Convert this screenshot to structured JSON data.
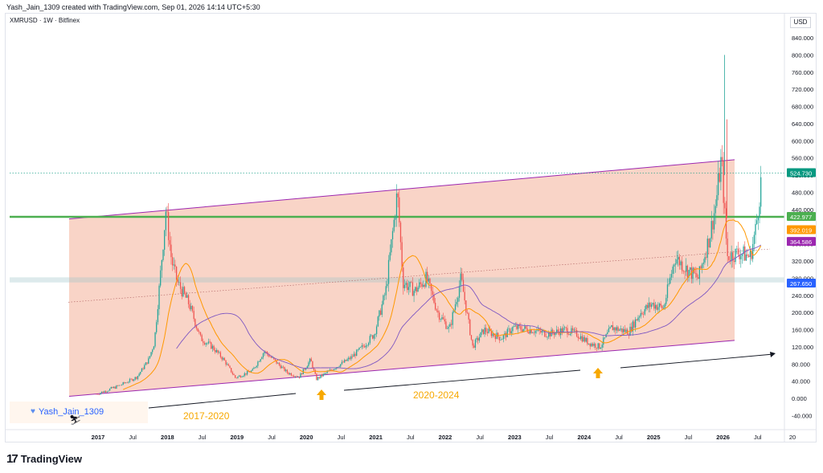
{
  "header": {
    "attribution": "Yash_Jain_1309 created with TradingView.com, Sep 01, 2026 14:14 UTC+5:30",
    "symbol": "XMRUSD · 1W · Bitfinex",
    "currency": "USD"
  },
  "brand": {
    "logo_icon": "tradingview-logo-icon",
    "name": "TradingView"
  },
  "watermark": {
    "text": "Yash_Jain_1309",
    "heart_icon": "heart-icon"
  },
  "colors": {
    "up": "#26a69a",
    "down": "#ef5350",
    "channel_fill": "#f7c9b9",
    "channel_line": "#9c27b0",
    "support": "#4caf50",
    "ma_fast": "#ff9800",
    "ma_slow": "#7e57c2",
    "label_orange": "#f7a800",
    "price_teal": "#089981",
    "price_purple": "#9c27b0",
    "price_blue": "#2962ff"
  },
  "chart_data": {
    "type": "candlestick",
    "title": "",
    "xlabel": "",
    "ylabel": "",
    "ylim": [
      -40,
      880
    ],
    "x_ticks": [
      "2017",
      "Jul",
      "2018",
      "Jul",
      "2019",
      "Jul",
      "2020",
      "Jul",
      "2021",
      "Jul",
      "2022",
      "Jul",
      "2023",
      "Jul",
      "2024",
      "Jul",
      "2025",
      "Jul",
      "2026",
      "Jul",
      "20"
    ],
    "y_ticks": [
      "840.000",
      "800.000",
      "760.000",
      "720.000",
      "680.000",
      "640.000",
      "600.000",
      "560.000",
      "520.000",
      "480.000",
      "440.000",
      "400.000",
      "360.000",
      "320.000",
      "280.000",
      "240.000",
      "200.000",
      "160.000",
      "120.000",
      "80.000",
      "40.000",
      "0.000",
      "-40.000"
    ],
    "price_labels": [
      {
        "value": "524.730",
        "color": "#089981"
      },
      {
        "value": "422.977",
        "color": "#4caf50"
      },
      {
        "value": "392.019",
        "color": "#ff9800"
      },
      {
        "value": "364.586",
        "color": "#9c27b0"
      },
      {
        "value": "267.650",
        "color": "#2962ff"
      }
    ],
    "current_price": 524.73,
    "support_level": 422.977,
    "channel": {
      "upper": [
        [
          "2017-01",
          418
        ],
        [
          "2026-08",
          556
        ]
      ],
      "lower": [
        [
          "2017-01",
          5
        ],
        [
          "2026-08",
          135
        ]
      ]
    },
    "price_path": [
      [
        "2017-01",
        10
      ],
      [
        "2017-05",
        30
      ],
      [
        "2017-08",
        50
      ],
      [
        "2017-10",
        90
      ],
      [
        "2017-11",
        130
      ],
      [
        "2017-12",
        280
      ],
      [
        "2018-01",
        440
      ],
      [
        "2018-02",
        320
      ],
      [
        "2018-03",
        270
      ],
      [
        "2018-05",
        220
      ],
      [
        "2018-07",
        140
      ],
      [
        "2018-09",
        120
      ],
      [
        "2018-11",
        90
      ],
      [
        "2019-01",
        48
      ],
      [
        "2019-04",
        65
      ],
      [
        "2019-06",
        110
      ],
      [
        "2019-08",
        85
      ],
      [
        "2019-10",
        60
      ],
      [
        "2019-12",
        50
      ],
      [
        "2020-02",
        90
      ],
      [
        "2020-03",
        45
      ],
      [
        "2020-06",
        70
      ],
      [
        "2020-09",
        95
      ],
      [
        "2020-11",
        120
      ],
      [
        "2021-01",
        150
      ],
      [
        "2021-03",
        250
      ],
      [
        "2021-05",
        480
      ],
      [
        "2021-06",
        270
      ],
      [
        "2021-08",
        250
      ],
      [
        "2021-10",
        280
      ],
      [
        "2021-12",
        200
      ],
      [
        "2022-02",
        160
      ],
      [
        "2022-04",
        280
      ],
      [
        "2022-06",
        120
      ],
      [
        "2022-08",
        160
      ],
      [
        "2022-11",
        140
      ],
      [
        "2023-01",
        165
      ],
      [
        "2023-04",
        160
      ],
      [
        "2023-07",
        150
      ],
      [
        "2023-10",
        160
      ],
      [
        "2023-12",
        150
      ],
      [
        "2024-02",
        130
      ],
      [
        "2024-04",
        120
      ],
      [
        "2024-06",
        165
      ],
      [
        "2024-09",
        155
      ],
      [
        "2024-11",
        200
      ],
      [
        "2025-01",
        220
      ],
      [
        "2025-03",
        210
      ],
      [
        "2025-05",
        330
      ],
      [
        "2025-07",
        300
      ],
      [
        "2025-09",
        280
      ],
      [
        "2025-11",
        380
      ],
      [
        "2025-12",
        450
      ],
      [
        "2026-01",
        560
      ],
      [
        "2026-02",
        330
      ],
      [
        "2026-04",
        340
      ],
      [
        "2026-06",
        330
      ],
      [
        "2026-07",
        400
      ],
      [
        "2026-08",
        525
      ]
    ],
    "spike": {
      "x": "2026-01",
      "high": 800
    },
    "annotations": [
      {
        "text": "2017-2020",
        "color": "#f7a800"
      },
      {
        "text": "2020-2024",
        "color": "#f7a800"
      }
    ]
  }
}
